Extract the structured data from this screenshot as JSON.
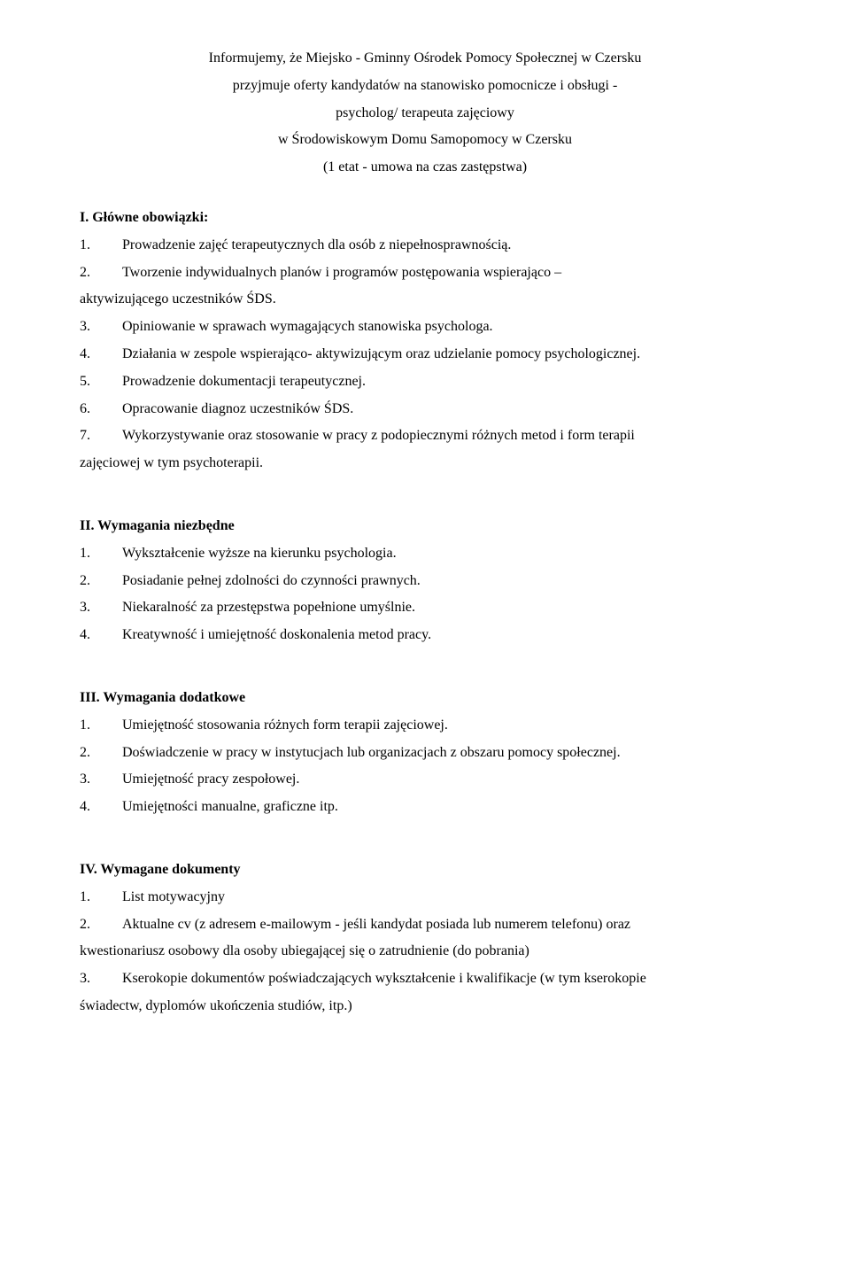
{
  "header": {
    "line1": "Informujemy, że Miejsko - Gminny Ośrodek Pomocy Społecznej w Czersku",
    "line2": "przyjmuje oferty kandydatów na stanowisko pomocnicze i obsługi -",
    "line3": "psycholog/ terapeuta zajęciowy",
    "line4": "w Środowiskowym Domu Samopomocy w Czersku",
    "line5": "(1 etat - umowa na czas zastępstwa)"
  },
  "section1": {
    "heading": "I. Główne obowiązki:",
    "items": [
      {
        "num": "1.",
        "text": "Prowadzenie zajęć terapeutycznych dla osób z niepełnosprawnością."
      },
      {
        "num": "2.",
        "text": "Tworzenie indywidualnych planów i programów postępowania wspierająco –"
      }
    ],
    "cont1": "aktywizującego uczestników ŚDS.",
    "items2": [
      {
        "num": "3.",
        "text": "Opiniowanie w sprawach wymagających stanowiska psychologa."
      },
      {
        "num": "4.",
        "text": "Działania w zespole  wspierająco- aktywizującym oraz  udzielanie pomocy psychologicznej."
      },
      {
        "num": "5.",
        "text": "Prowadzenie dokumentacji terapeutycznej."
      },
      {
        "num": "6.",
        "text": "Opracowanie diagnoz uczestników ŚDS."
      },
      {
        "num": "7.",
        "text": "Wykorzystywanie oraz stosowanie w pracy z podopiecznymi różnych metod i form terapii"
      }
    ],
    "cont2": "zajęciowej w tym psychoterapii."
  },
  "section2": {
    "heading": "II. Wymagania niezbędne",
    "items": [
      {
        "num": "1.",
        "text": "Wykształcenie wyższe na kierunku psychologia."
      },
      {
        "num": "2.",
        "text": "Posiadanie pełnej zdolności do czynności prawnych."
      },
      {
        "num": "3.",
        "text": "Niekaralność za przestępstwa popełnione umyślnie."
      },
      {
        "num": "4.",
        "text": "Kreatywność i umiejętność doskonalenia metod pracy."
      }
    ]
  },
  "section3": {
    "heading": "III. Wymagania dodatkowe",
    "items": [
      {
        "num": "1.",
        "text": "Umiejętność stosowania różnych form terapii zajęciowej."
      },
      {
        "num": "2.",
        "text": "Doświadczenie w pracy w instytucjach lub organizacjach z obszaru pomocy społecznej."
      },
      {
        "num": "3.",
        "text": "Umiejętność pracy zespołowej."
      },
      {
        "num": "4.",
        "text": "Umiejętności manualne, graficzne itp."
      }
    ]
  },
  "section4": {
    "heading": "IV. Wymagane dokumenty",
    "items": [
      {
        "num": "1.",
        "text": "List motywacyjny"
      },
      {
        "num": "2.",
        "text": "Aktualne cv (z adresem e-mailowym - jeśli kandydat posiada lub numerem telefonu) oraz"
      }
    ],
    "cont1": "kwestionariusz osobowy dla osoby ubiegającej się o zatrudnienie (do pobrania)",
    "items2": [
      {
        "num": "3.",
        "text": "Kserokopie dokumentów poświadczających wykształcenie i kwalifikacje (w tym kserokopie"
      }
    ],
    "cont2": "świadectw, dyplomów ukończenia studiów, itp.)"
  }
}
